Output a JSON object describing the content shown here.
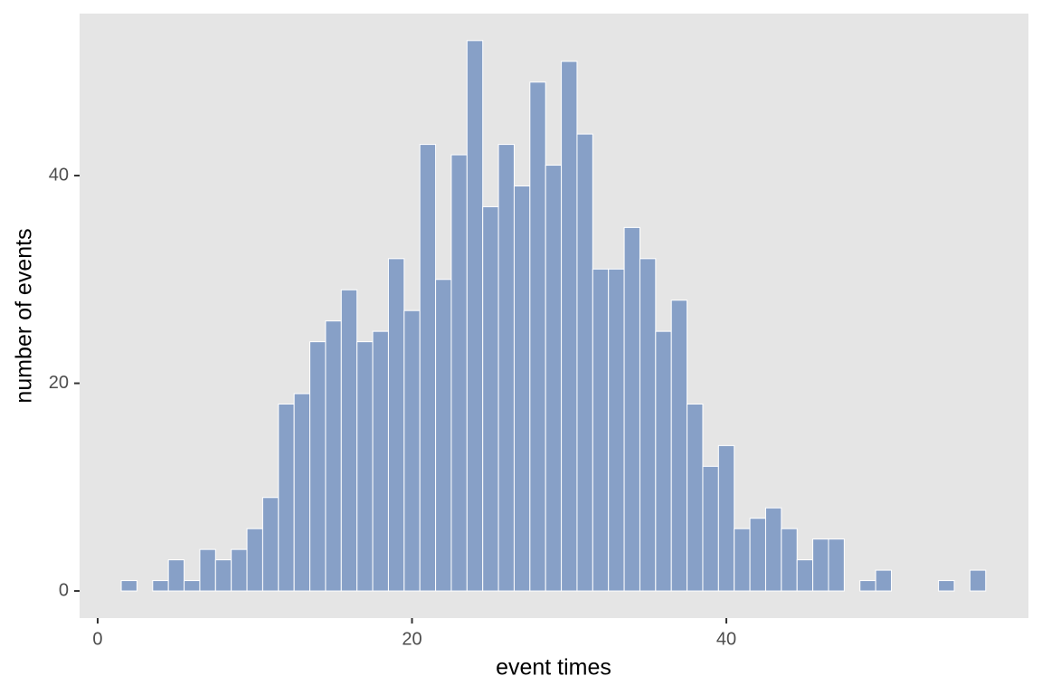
{
  "chart_data": {
    "type": "histogram",
    "x_label": "event times",
    "y_label": "number of events",
    "bins": [
      1.5,
      2.5,
      3.5,
      4.5,
      5.5,
      6.5,
      7.5,
      8.5,
      9.5,
      10.5,
      11.5,
      12.5,
      13.5,
      14.5,
      15.5,
      16.5,
      17.5,
      18.5,
      19.5,
      20.5,
      21.5,
      22.5,
      23.5,
      24.5,
      25.5,
      26.5,
      27.5,
      28.5,
      29.5,
      30.5,
      31.5,
      32.5,
      33.5,
      34.5,
      35.5,
      36.5,
      37.5,
      38.5,
      39.5,
      40.5,
      41.5,
      42.5,
      43.5,
      44.5,
      45.5,
      46.5,
      47.5,
      48.5,
      49.5,
      50.5,
      51.5,
      52.5,
      53.5,
      54.5,
      55.5,
      56.5
    ],
    "values": [
      1,
      0,
      1,
      3,
      1,
      4,
      3,
      4,
      6,
      9,
      18,
      19,
      24,
      26,
      29,
      24,
      25,
      32,
      27,
      43,
      30,
      42,
      53,
      37,
      43,
      39,
      49,
      41,
      51,
      44,
      31,
      31,
      35,
      32,
      25,
      28,
      18,
      12,
      14,
      6,
      7,
      8,
      6,
      3,
      5,
      5,
      0,
      1,
      2,
      0,
      0,
      0,
      1,
      0,
      2
    ],
    "color": "#87a0c7",
    "xlim": [
      -1.15,
      59.22
    ],
    "ylim": [
      -2.61,
      55.6
    ],
    "xticks": [
      0,
      20,
      40
    ],
    "yticks": [
      0,
      20,
      40
    ],
    "grid": false
  }
}
